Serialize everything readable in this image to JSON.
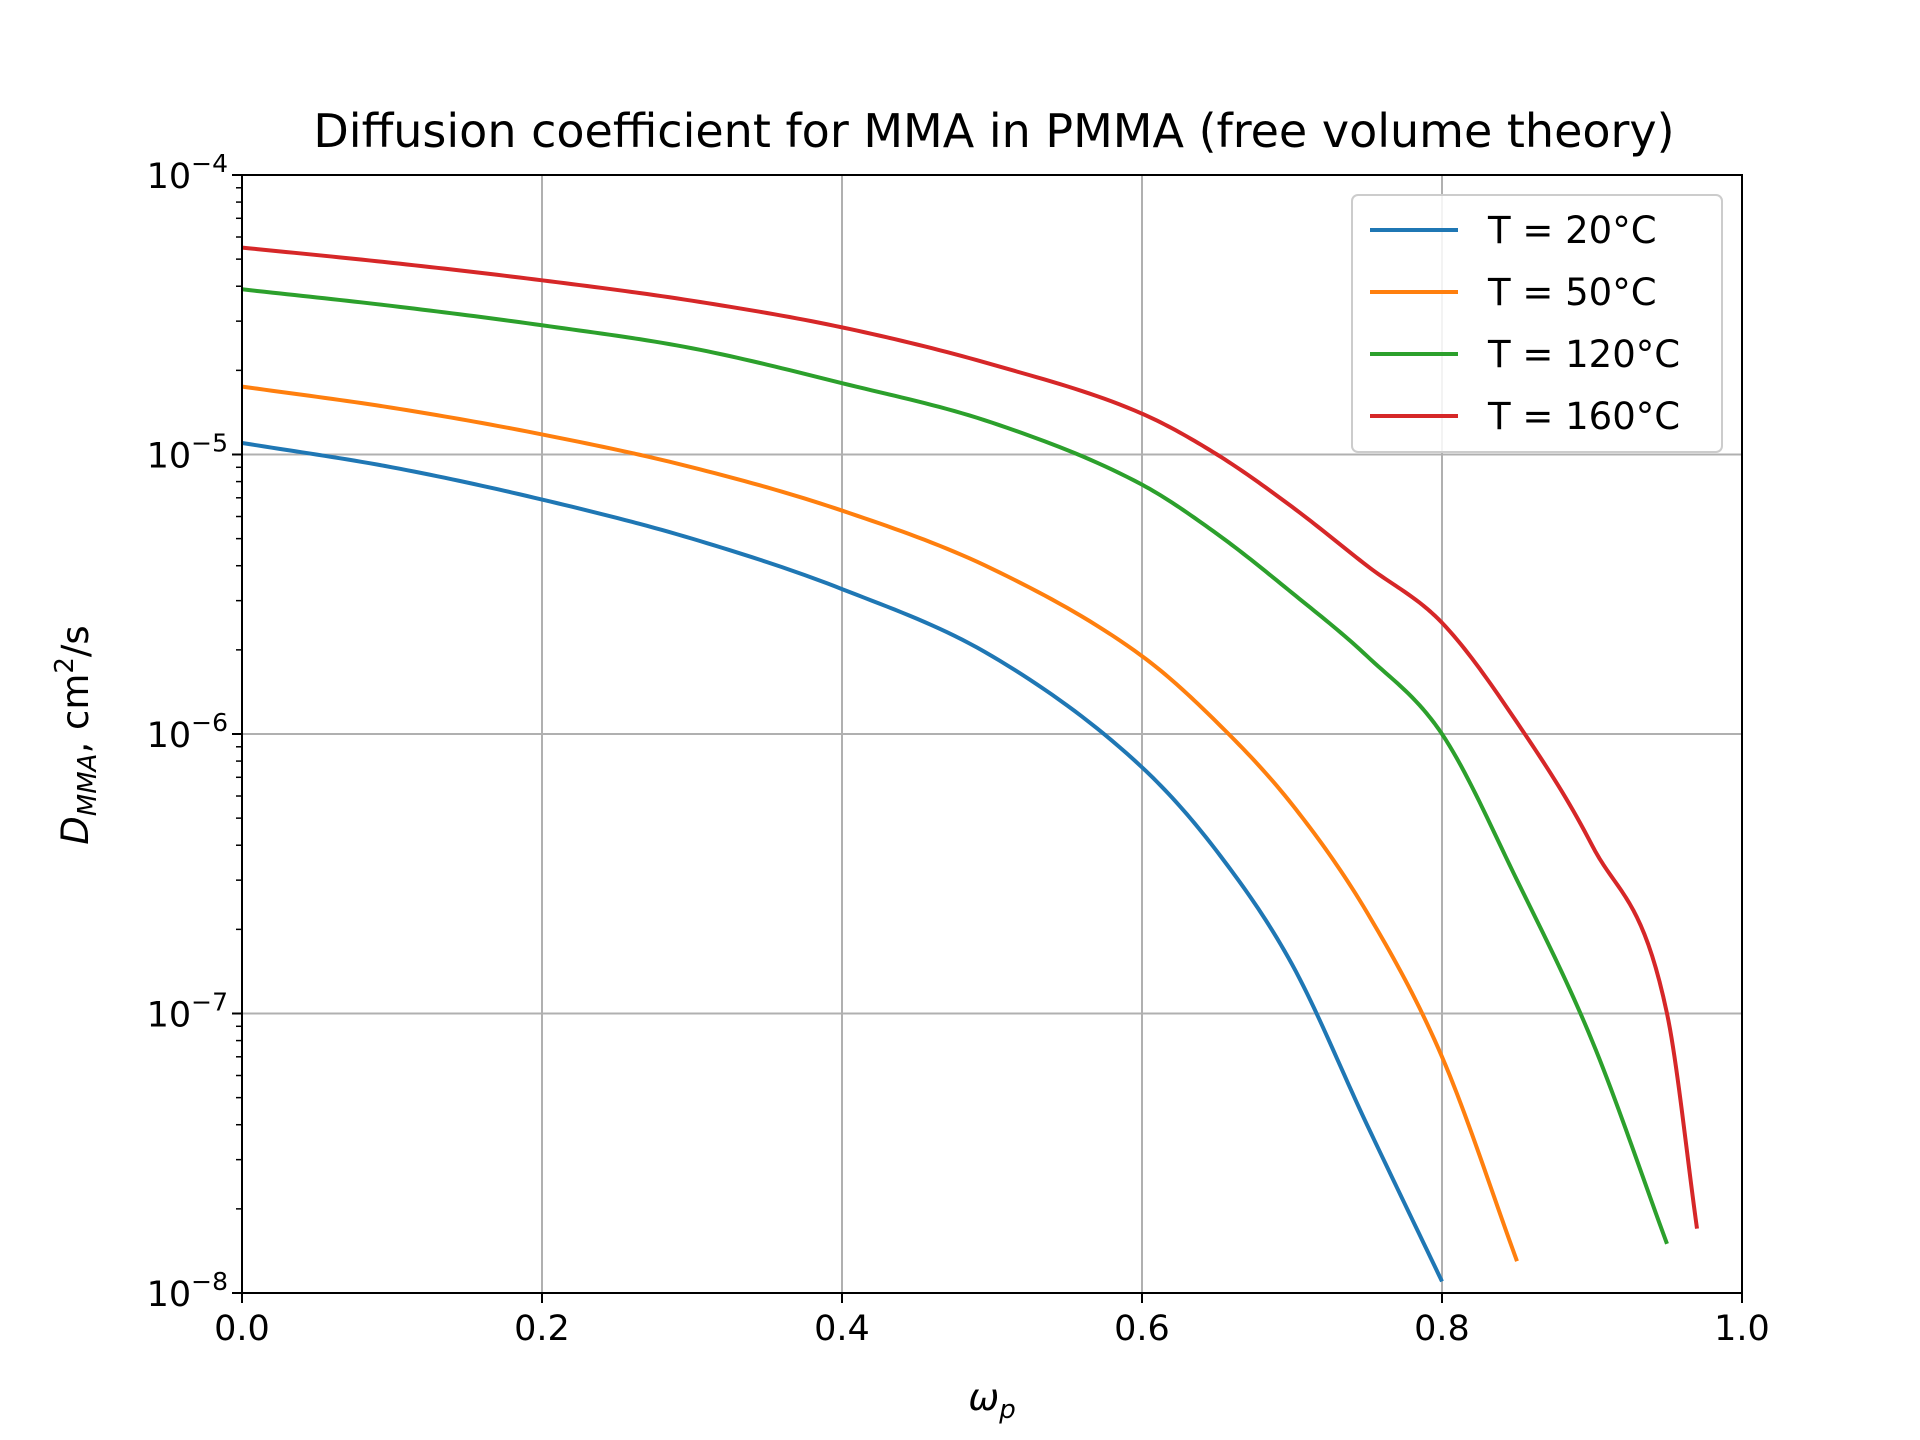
{
  "chart_data": {
    "type": "line",
    "title": "Diffusion coefficient for MMA in PMMA (free volume theory)",
    "xlabel": {
      "main": "ω",
      "sub": "p"
    },
    "ylabel": {
      "main": "D",
      "sub": "MMA",
      "rest": ", cm",
      "sup": "2",
      "tail": "/s"
    },
    "xlim": [
      0.0,
      1.0
    ],
    "ylim": [
      1e-08,
      0.0001
    ],
    "yscale": "log",
    "grid": true,
    "legend_position": "top-right",
    "x_ticks": [
      "0.0",
      "0.2",
      "0.4",
      "0.6",
      "0.8",
      "1.0"
    ],
    "y_ticks": [
      {
        "base": "10",
        "exp": "−8"
      },
      {
        "base": "10",
        "exp": "−7"
      },
      {
        "base": "10",
        "exp": "−6"
      },
      {
        "base": "10",
        "exp": "−5"
      },
      {
        "base": "10",
        "exp": "−4"
      }
    ],
    "x": [
      0.0,
      0.1,
      0.2,
      0.3,
      0.4,
      0.5,
      0.6,
      0.65,
      0.7,
      0.75,
      0.8,
      0.85,
      0.9,
      0.95,
      0.97
    ],
    "series": [
      {
        "name": "T = 20°C",
        "color": "#1f77b4",
        "values": [
          1.1e-05,
          9e-06,
          6.9e-06,
          5e-06,
          3.3e-06,
          1.9e-06,
          7.6e-07,
          3.8e-07,
          1.5e-07,
          4e-08,
          1.1e-08,
          null,
          null,
          null,
          null
        ]
      },
      {
        "name": "T = 50°C",
        "color": "#ff7f0e",
        "values": [
          1.75e-05,
          1.47e-05,
          1.18e-05,
          9e-06,
          6.3e-06,
          3.9e-06,
          1.9e-06,
          1.1e-06,
          5.6e-07,
          2.3e-07,
          7e-08,
          1.3e-08,
          null,
          null,
          null
        ]
      },
      {
        "name": "T = 120°C",
        "color": "#2ca02c",
        "values": [
          3.9e-05,
          3.4e-05,
          2.9e-05,
          2.4e-05,
          1.8e-05,
          1.3e-05,
          7.8e-06,
          5.2e-06,
          3.2e-06,
          1.9e-06,
          1e-06,
          3e-07,
          8e-08,
          1.5e-08,
          null
        ]
      },
      {
        "name": "T = 160°C",
        "color": "#d62728",
        "values": [
          5.5e-05,
          4.85e-05,
          4.2e-05,
          3.55e-05,
          2.85e-05,
          2.1e-05,
          1.4e-05,
          1e-05,
          6.5e-06,
          4e-06,
          2.5e-06,
          1.1e-06,
          4e-07,
          1e-07,
          1.7e-08
        ]
      }
    ]
  }
}
